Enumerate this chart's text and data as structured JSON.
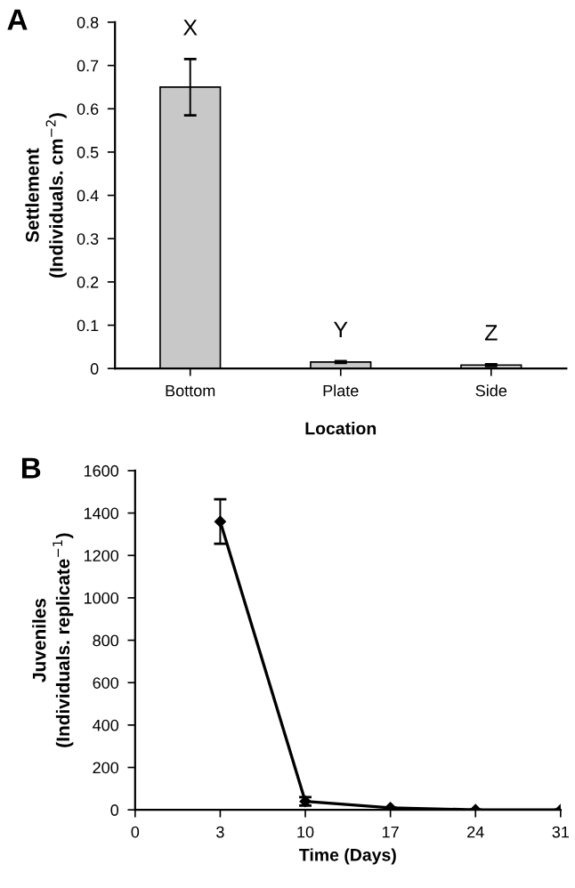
{
  "chart_data": [
    {
      "type": "bar",
      "xlabel": "Location",
      "ylabel": "Settlement\n(Individuals. cm$^{−2}$)",
      "categories": [
        "Bottom",
        "Plate",
        "Side"
      ],
      "values": [
        0.65,
        0.015,
        0.008
      ],
      "errors": [
        0.065,
        0.002,
        0.002
      ],
      "color": "#c8c8c8",
      "ylim": [
        0,
        0.8
      ],
      "yticks": [
        0,
        0.1,
        0.2,
        0.3,
        0.4,
        0.5,
        0.6,
        0.7,
        0.8
      ],
      "grid": false,
      "legend": false,
      "annotations": [
        "A",
        "X",
        "Y",
        "Z"
      ]
    },
    {
      "type": "line",
      "xlabel": "Time (Days)",
      "ylabel": "Juveniles\n(Individuals. replicate$^{−1}$)",
      "categories": [
        "0",
        "3",
        "10",
        "17",
        "24",
        "31"
      ],
      "values": [
        null,
        1360,
        40,
        10,
        0,
        0
      ],
      "errors": [
        null,
        105,
        20,
        null,
        null,
        null
      ],
      "color": "#000000",
      "marker": "diamond",
      "line_style": "solid",
      "ylim": [
        0,
        1600
      ],
      "yticks": [
        0,
        200,
        400,
        600,
        800,
        1000,
        1200,
        1400,
        1600
      ],
      "grid": false,
      "legend": false,
      "annotations": [
        "B"
      ]
    }
  ]
}
